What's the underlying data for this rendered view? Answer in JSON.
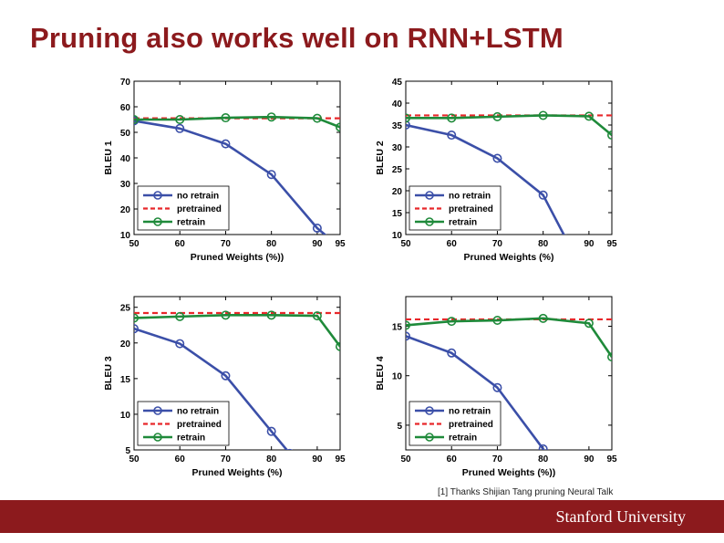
{
  "slide": {
    "title": "Pruning also works well on RNN+LSTM",
    "footnote": "[1] Thanks Shijian Tang pruning Neural Talk",
    "brand": "Stanford University"
  },
  "colors": {
    "title": "#8c1a1d",
    "footer_bar": "#8c1a1d",
    "no_retrain": "#3b4fa8",
    "pretrained": "#e8282b",
    "retrain": "#1f8a3a"
  },
  "chart_data": [
    {
      "type": "line",
      "ylabel": "BLEU 1",
      "xlabel": "Pruned Weights (%))",
      "x_ticks": [
        50,
        60,
        70,
        80,
        90,
        95
      ],
      "y_ticks": [
        10,
        20,
        30,
        40,
        50,
        60,
        70
      ],
      "xlim": [
        50,
        95
      ],
      "ylim": [
        10,
        70
      ],
      "legend_position": "bottom-left",
      "legend": [
        "no retrain",
        "pretrained",
        "retrain"
      ],
      "series": [
        {
          "name": "no retrain",
          "style": "solid-marker",
          "x": [
            50,
            60,
            70,
            80,
            90,
            95
          ],
          "y": [
            54.5,
            51.5,
            45.5,
            33.5,
            12.5,
            5
          ]
        },
        {
          "name": "pretrained",
          "style": "dashed",
          "x": [
            50,
            95
          ],
          "y": [
            55.5,
            55.5
          ]
        },
        {
          "name": "retrain",
          "style": "solid-marker",
          "x": [
            50,
            60,
            70,
            80,
            90,
            95
          ],
          "y": [
            55,
            55,
            55.7,
            56,
            55.5,
            52
          ]
        }
      ]
    },
    {
      "type": "line",
      "ylabel": "BLEU 2",
      "xlabel": "Pruned Weights (%)",
      "x_ticks": [
        50,
        60,
        70,
        80,
        90,
        95
      ],
      "y_ticks": [
        10,
        15,
        20,
        25,
        30,
        35,
        40,
        45
      ],
      "xlim": [
        50,
        95
      ],
      "ylim": [
        10,
        45
      ],
      "legend_position": "bottom-left",
      "legend": [
        "no retrain",
        "pretrained",
        "retrain"
      ],
      "series": [
        {
          "name": "no retrain",
          "style": "solid-marker",
          "x": [
            50,
            60,
            70,
            80,
            85
          ],
          "y": [
            35,
            32.7,
            27.4,
            19,
            9
          ]
        },
        {
          "name": "pretrained",
          "style": "dashed",
          "x": [
            50,
            95
          ],
          "y": [
            37.2,
            37.2
          ]
        },
        {
          "name": "retrain",
          "style": "solid-marker",
          "x": [
            50,
            60,
            70,
            80,
            90,
            95
          ],
          "y": [
            36.6,
            36.6,
            36.9,
            37.2,
            37,
            32.7
          ]
        }
      ]
    },
    {
      "type": "line",
      "ylabel": "BLEU 3",
      "xlabel": "Pruned Weights (%)",
      "x_ticks": [
        50,
        60,
        70,
        80,
        90,
        95
      ],
      "y_ticks": [
        5,
        10,
        15,
        20,
        25
      ],
      "xlim": [
        50,
        95
      ],
      "ylim": [
        5,
        26.5
      ],
      "legend_position": "bottom-left",
      "legend": [
        "no retrain",
        "pretrained",
        "retrain"
      ],
      "series": [
        {
          "name": "no retrain",
          "style": "solid-marker",
          "x": [
            50,
            60,
            70,
            80,
            84
          ],
          "y": [
            22,
            19.9,
            15.4,
            7.6,
            4.5
          ]
        },
        {
          "name": "pretrained",
          "style": "dashed",
          "x": [
            50,
            95
          ],
          "y": [
            24.2,
            24.2
          ]
        },
        {
          "name": "retrain",
          "style": "solid-marker",
          "x": [
            50,
            60,
            70,
            80,
            90,
            95
          ],
          "y": [
            23.5,
            23.7,
            23.9,
            23.9,
            23.8,
            19.5
          ]
        }
      ]
    },
    {
      "type": "line",
      "ylabel": "BLEU 4",
      "xlabel": "Pruned Weights (%))",
      "x_ticks": [
        50,
        60,
        70,
        80,
        90,
        95
      ],
      "y_ticks": [
        5,
        10,
        15
      ],
      "xlim": [
        50,
        95
      ],
      "ylim": [
        2.5,
        18
      ],
      "legend_position": "bottom-left",
      "legend": [
        "no retrain",
        "pretrained",
        "retrain"
      ],
      "series": [
        {
          "name": "no retrain",
          "style": "solid-marker",
          "x": [
            50,
            60,
            70,
            80,
            82
          ],
          "y": [
            14,
            12.3,
            8.8,
            2.6,
            1
          ]
        },
        {
          "name": "pretrained",
          "style": "dashed",
          "x": [
            50,
            95
          ],
          "y": [
            15.7,
            15.7
          ]
        },
        {
          "name": "retrain",
          "style": "solid-marker",
          "x": [
            50,
            60,
            70,
            80,
            90,
            95
          ],
          "y": [
            15.1,
            15.5,
            15.6,
            15.8,
            15.3,
            11.9
          ]
        }
      ]
    }
  ]
}
